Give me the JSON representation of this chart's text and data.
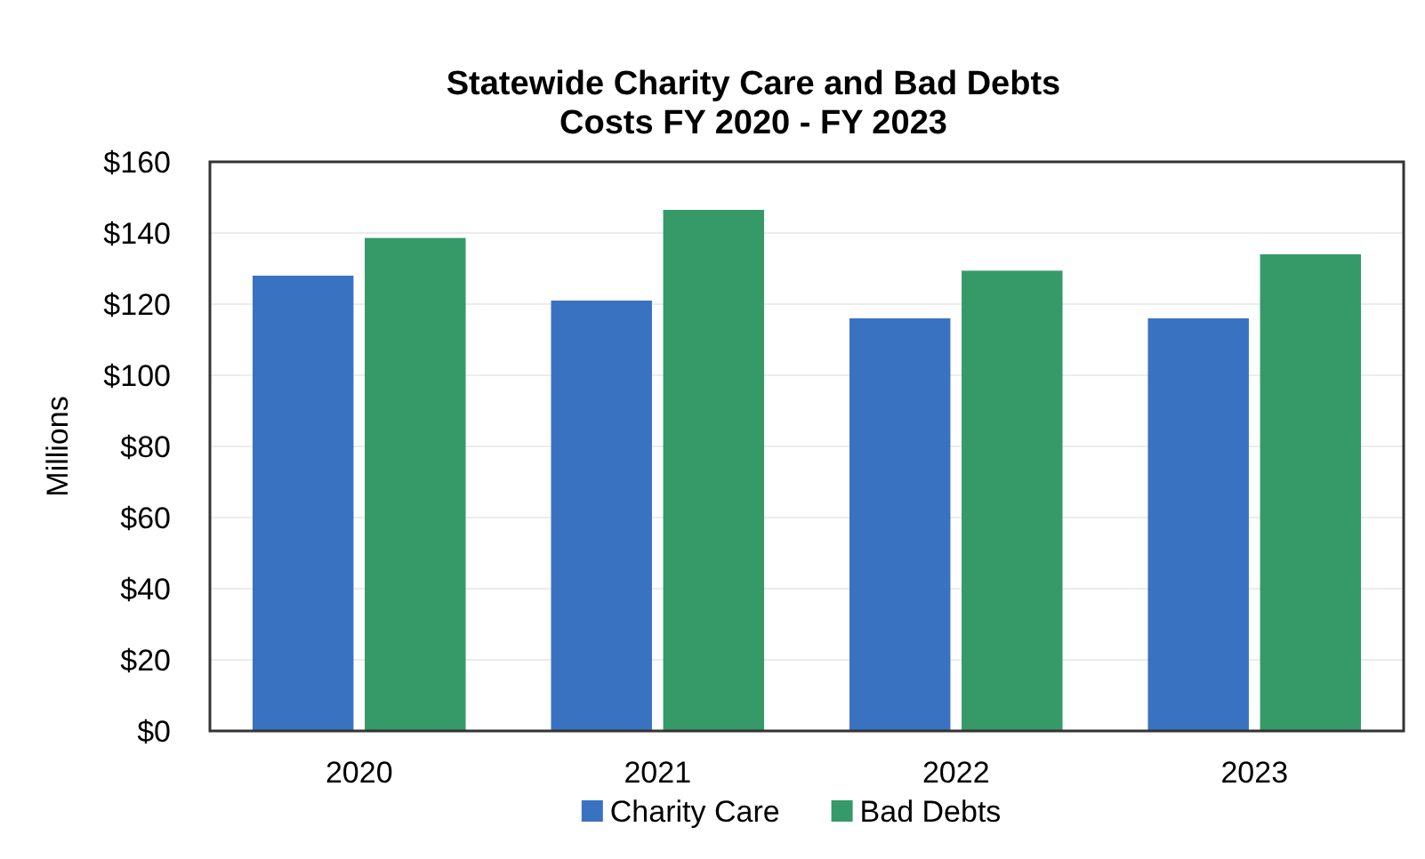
{
  "chart_data": {
    "type": "bar",
    "title": "Statewide Charity Care and Bad Debts\nCosts FY 2020 - FY 2023",
    "ylabel": "Millions",
    "categories": [
      "2020",
      "2021",
      "2022",
      "2023"
    ],
    "series": [
      {
        "name": "Charity Care",
        "color": "#3a72c2",
        "values": [
          128,
          121,
          116,
          116
        ]
      },
      {
        "name": "Bad Debts",
        "color": "#359a68",
        "values": [
          138.6,
          146.5,
          129.4,
          134
        ]
      }
    ],
    "ylim": [
      0,
      160
    ],
    "yticks": [
      {
        "value": 0,
        "label": "$0"
      },
      {
        "value": 20,
        "label": "$20"
      },
      {
        "value": 40,
        "label": "$40"
      },
      {
        "value": 60,
        "label": "$60"
      },
      {
        "value": 80,
        "label": "$80"
      },
      {
        "value": 100,
        "label": "$100"
      },
      {
        "value": 120,
        "label": "$120"
      },
      {
        "value": 140,
        "label": "$140"
      },
      {
        "value": 160,
        "label": "$160"
      }
    ],
    "grid": "y",
    "legend": "bottom"
  }
}
